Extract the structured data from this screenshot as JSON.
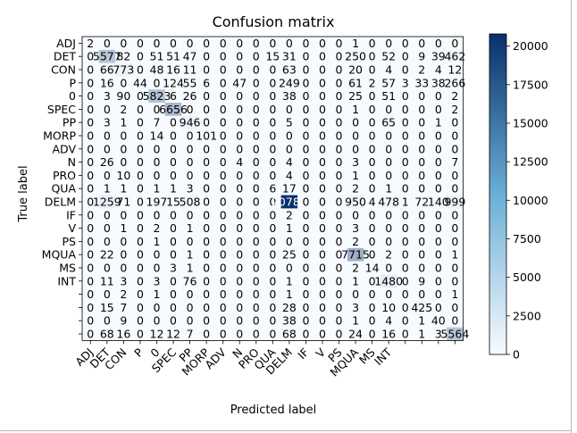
{
  "chart_data": {
    "type": "heatmap",
    "title": "Confusion matrix",
    "xlabel": "Predicted label",
    "ylabel": "True label",
    "row_labels": [
      "ADJ",
      "DET",
      "CON",
      "P",
      "0",
      "SPEC",
      "PP",
      "MORP",
      "ADV",
      "N",
      "PRO",
      "QUA",
      "DELM",
      "IF",
      "V",
      "PS",
      "MQUA",
      "MS",
      "INT",
      "",
      "",
      "",
      ""
    ],
    "col_labels": [
      "ADJ",
      "DET",
      "CON",
      "P",
      "0",
      "SPEC",
      "PP",
      "MORP",
      "ADV",
      "N",
      "PRO",
      "QUA",
      "DELM",
      "IF",
      "V",
      "PS",
      "MQUA",
      "MS",
      "INT",
      "",
      "",
      "",
      ""
    ],
    "cells": [
      [
        "2",
        "0",
        "0",
        "0",
        "0",
        "0",
        "0",
        "0",
        "0",
        "0",
        "0",
        "0",
        "0",
        "0",
        "0",
        "0",
        "1",
        "0",
        "0",
        "0",
        "0",
        "0",
        "0"
      ],
      [
        "0",
        "5577",
        "82",
        "0",
        "51",
        "51",
        "47",
        "0",
        "0",
        "0",
        "0",
        "15",
        "31",
        "0",
        "0",
        "0",
        "250",
        "0",
        "52",
        "0",
        "9",
        "39",
        "462"
      ],
      [
        "0",
        "66",
        "773",
        "0",
        "48",
        "16",
        "11",
        "0",
        "0",
        "0",
        "0",
        "0",
        "63",
        "0",
        "0",
        "0",
        "20",
        "0",
        "4",
        "0",
        "2",
        "4",
        "12"
      ],
      [
        "0",
        "16",
        "0",
        "44",
        "0",
        "124",
        "55",
        "6",
        "0",
        "47",
        "0",
        "0",
        "249",
        "0",
        "0",
        "0",
        "61",
        "2",
        "57",
        "3",
        "33",
        "38",
        "266"
      ],
      [
        "0",
        "3",
        "90",
        "0",
        "5823",
        "6",
        "26",
        "0",
        "0",
        "0",
        "0",
        "0",
        "38",
        "0",
        "0",
        "0",
        "25",
        "0",
        "51",
        "0",
        "0",
        "0",
        "2"
      ],
      [
        "0",
        "0",
        "2",
        "0",
        "0",
        "6656",
        "0",
        "0",
        "0",
        "0",
        "0",
        "0",
        "0",
        "0",
        "0",
        "0",
        "1",
        "0",
        "0",
        "0",
        "0",
        "0",
        "2"
      ],
      [
        "0",
        "3",
        "1",
        "0",
        "7",
        "0",
        "946",
        "0",
        "0",
        "0",
        "0",
        "0",
        "5",
        "0",
        "0",
        "0",
        "0",
        "0",
        "65",
        "0",
        "0",
        "1",
        "0"
      ],
      [
        "0",
        "0",
        "0",
        "0",
        "14",
        "0",
        "0",
        "101",
        "0",
        "0",
        "0",
        "0",
        "0",
        "0",
        "0",
        "0",
        "0",
        "0",
        "0",
        "0",
        "0",
        "0",
        "0"
      ],
      [
        "0",
        "0",
        "0",
        "0",
        "0",
        "0",
        "0",
        "0",
        "0",
        "0",
        "0",
        "0",
        "0",
        "0",
        "0",
        "0",
        "0",
        "0",
        "0",
        "0",
        "0",
        "0",
        "0"
      ],
      [
        "0",
        "26",
        "0",
        "0",
        "0",
        "0",
        "0",
        "0",
        "0",
        "4",
        "0",
        "0",
        "4",
        "0",
        "0",
        "0",
        "3",
        "0",
        "0",
        "0",
        "0",
        "0",
        "7"
      ],
      [
        "0",
        "0",
        "10",
        "0",
        "0",
        "0",
        "0",
        "0",
        "0",
        "0",
        "0",
        "0",
        "4",
        "0",
        "0",
        "0",
        "1",
        "0",
        "0",
        "0",
        "0",
        "0",
        "0"
      ],
      [
        "0",
        "1",
        "1",
        "0",
        "1",
        "1",
        "3",
        "0",
        "0",
        "0",
        "0",
        "6",
        "17",
        "0",
        "0",
        "0",
        "2",
        "0",
        "1",
        "0",
        "0",
        "0",
        "0"
      ],
      [
        "0",
        "1259",
        "71",
        "0",
        "197",
        "15",
        "508",
        "0",
        "0",
        "0",
        "0",
        "0",
        "20788",
        "0",
        "0",
        "0",
        "950",
        "4",
        "478",
        "1",
        "72",
        "140",
        "999"
      ],
      [
        "0",
        "0",
        "0",
        "0",
        "0",
        "0",
        "0",
        "0",
        "0",
        "0",
        "0",
        "0",
        "2",
        "0",
        "0",
        "0",
        "0",
        "0",
        "0",
        "0",
        "0",
        "0",
        "0"
      ],
      [
        "0",
        "0",
        "1",
        "0",
        "2",
        "0",
        "1",
        "0",
        "0",
        "0",
        "0",
        "0",
        "1",
        "0",
        "0",
        "0",
        "3",
        "0",
        "0",
        "0",
        "0",
        "0",
        "0"
      ],
      [
        "0",
        "0",
        "0",
        "0",
        "1",
        "0",
        "0",
        "0",
        "0",
        "0",
        "0",
        "0",
        "0",
        "0",
        "0",
        "0",
        "2",
        "0",
        "0",
        "0",
        "0",
        "0",
        "0"
      ],
      [
        "0",
        "22",
        "0",
        "0",
        "0",
        "0",
        "1",
        "0",
        "0",
        "0",
        "0",
        "0",
        "25",
        "0",
        "0",
        "0",
        "7715",
        "0",
        "2",
        "0",
        "0",
        "0",
        "1"
      ],
      [
        "0",
        "0",
        "0",
        "0",
        "0",
        "3",
        "1",
        "0",
        "0",
        "0",
        "0",
        "0",
        "0",
        "0",
        "0",
        "0",
        "2",
        "14",
        "0",
        "0",
        "0",
        "0",
        "0"
      ],
      [
        "0",
        "11",
        "3",
        "0",
        "3",
        "0",
        "76",
        "0",
        "0",
        "0",
        "0",
        "0",
        "1",
        "0",
        "0",
        "0",
        "1",
        "0",
        "1480",
        "0",
        "9",
        "0",
        "0"
      ],
      [
        "0",
        "0",
        "2",
        "0",
        "1",
        "0",
        "0",
        "0",
        "0",
        "0",
        "0",
        "0",
        "1",
        "0",
        "0",
        "0",
        "0",
        "0",
        "0",
        "0",
        "0",
        "0",
        "1"
      ],
      [
        "0",
        "15",
        "7",
        "0",
        "0",
        "0",
        "0",
        "0",
        "0",
        "0",
        "0",
        "0",
        "28",
        "0",
        "0",
        "0",
        "3",
        "0",
        "10",
        "0",
        "425",
        "0",
        "0"
      ],
      [
        "0",
        "0",
        "9",
        "0",
        "0",
        "0",
        "0",
        "0",
        "0",
        "0",
        "0",
        "0",
        "38",
        "0",
        "0",
        "0",
        "1",
        "0",
        "4",
        "0",
        "1",
        "40",
        "0"
      ],
      [
        "0",
        "68",
        "16",
        "0",
        "12",
        "12",
        "7",
        "0",
        "0",
        "0",
        "0",
        "0",
        "68",
        "0",
        "0",
        "0",
        "24",
        "0",
        "16",
        "0",
        "1",
        "3",
        "5564"
      ]
    ],
    "colorbar": {
      "min": 0,
      "max": 20788,
      "ticks": [
        0,
        2500,
        5000,
        7500,
        10000,
        12500,
        15000,
        17500,
        20000
      ]
    },
    "colormap": "Blues",
    "colors": {
      "low": "#f7fbff",
      "high": "#08306b",
      "text_dark": "#000000",
      "text_light": "#ffffff"
    },
    "grid": false
  }
}
